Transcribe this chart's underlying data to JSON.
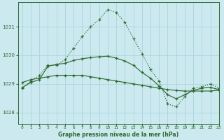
{
  "title": "Graphe pression niveau de la mer (hPa)",
  "bg_color": "#cce9f0",
  "grid_color": "#aad4dc",
  "line_color": "#2d6a2d",
  "xlim": [
    -0.5,
    23
  ],
  "ylim": [
    1027.6,
    1031.85
  ],
  "yticks": [
    1028,
    1029,
    1030,
    1031
  ],
  "xticks": [
    0,
    1,
    2,
    3,
    4,
    5,
    6,
    7,
    8,
    9,
    10,
    11,
    12,
    13,
    14,
    15,
    16,
    17,
    18,
    19,
    20,
    21,
    22,
    23
  ],
  "line1_x": [
    0,
    1,
    2,
    3,
    4,
    5,
    6,
    7,
    8,
    9,
    10,
    11,
    12,
    13,
    14,
    15,
    16,
    17,
    18,
    19,
    20,
    21,
    22,
    23
  ],
  "line1_y": [
    1028.85,
    1029.1,
    1029.3,
    1029.65,
    1029.65,
    1029.85,
    1030.25,
    1030.65,
    1031.0,
    1031.25,
    1031.6,
    1031.5,
    1031.15,
    1030.6,
    1030.05,
    1029.5,
    1029.1,
    1028.3,
    1028.2,
    1028.55,
    1028.85,
    1028.9,
    1029.0,
    1028.85
  ],
  "line2_x": [
    0,
    1,
    2,
    3,
    4,
    5,
    6,
    7,
    8,
    9,
    10,
    11,
    12,
    13,
    14,
    15,
    16,
    17,
    18,
    19,
    20,
    21,
    22,
    23
  ],
  "line2_y": [
    1029.05,
    1029.15,
    1029.2,
    1029.25,
    1029.3,
    1029.3,
    1029.3,
    1029.3,
    1029.25,
    1029.2,
    1029.15,
    1029.1,
    1029.05,
    1029.0,
    1028.95,
    1028.9,
    1028.85,
    1028.8,
    1028.77,
    1028.75,
    1028.75,
    1028.75,
    1028.75,
    1028.78
  ],
  "line3_x": [
    0,
    1,
    2,
    3,
    4,
    5,
    6,
    7,
    8,
    9,
    10,
    11,
    12,
    13,
    14,
    15,
    16,
    17,
    18,
    19,
    20,
    21,
    22,
    23
  ],
  "line3_y": [
    1028.87,
    1029.05,
    1029.15,
    1029.62,
    1029.68,
    1029.72,
    1029.82,
    1029.88,
    1029.92,
    1029.95,
    1029.97,
    1029.9,
    1029.8,
    1029.65,
    1029.4,
    1029.2,
    1028.93,
    1028.62,
    1028.48,
    1028.62,
    1028.77,
    1028.85,
    1028.88,
    1028.8
  ]
}
